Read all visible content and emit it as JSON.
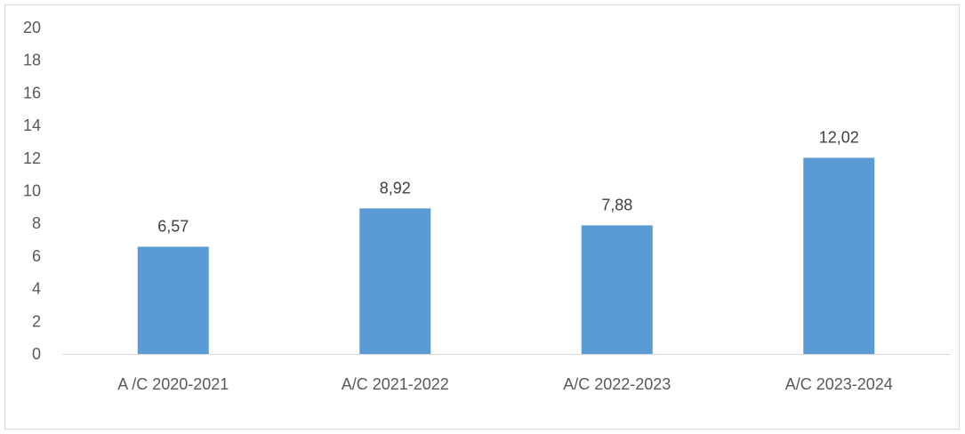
{
  "chart_data": {
    "type": "bar",
    "categories": [
      "A /C 2020-2021",
      "A/C 2021-2022",
      "A/C 2022-2023",
      "A/C 2023-2024"
    ],
    "values": [
      6.57,
      8.92,
      7.88,
      12.02
    ],
    "data_labels": [
      "6,57",
      "8,92",
      "7,88",
      "12,02"
    ],
    "y_ticks": [
      "0",
      "2",
      "4",
      "6",
      "8",
      "10",
      "12",
      "14",
      "16",
      "18",
      "20"
    ],
    "ylim": [
      0,
      20
    ],
    "title": "",
    "xlabel": "",
    "ylabel": "",
    "grid": false,
    "legend": "none",
    "bar_color": "#5b9bd5"
  }
}
